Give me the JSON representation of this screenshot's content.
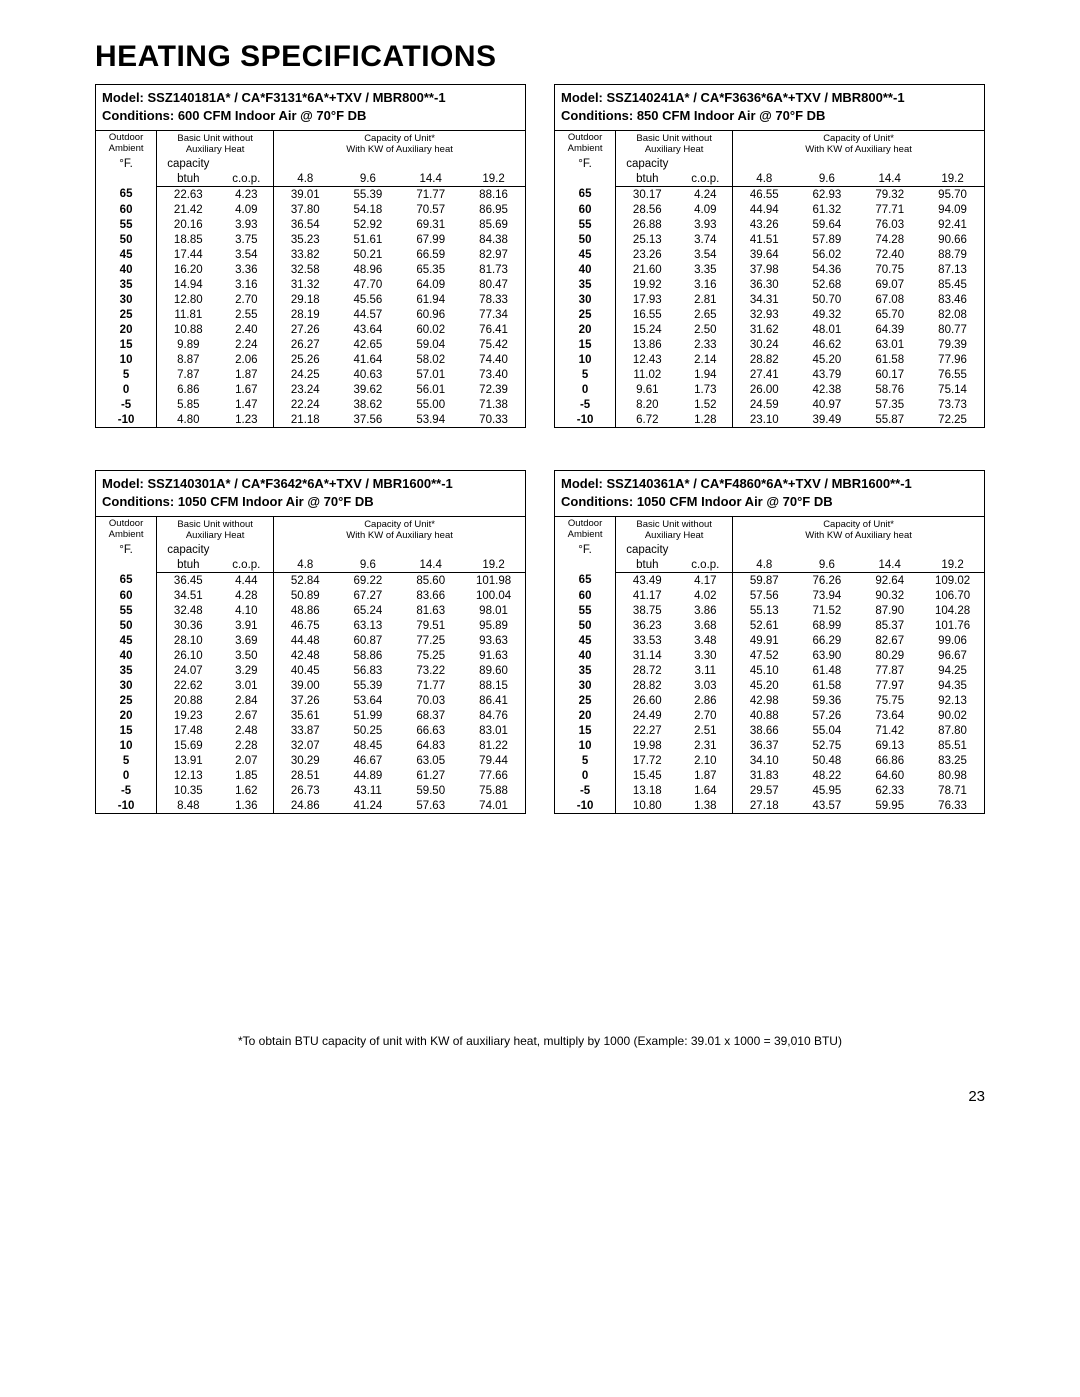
{
  "page_title": "HEATING SPECIFICATIONS",
  "header_labels": {
    "outdoor_line1": "Outdoor",
    "outdoor_line2": "Ambient",
    "outdoor_unit": "°F.",
    "basic_unit_line1": "Basic Unit without",
    "basic_unit_line2": "Auxiliary Heat",
    "capacity_line1": "Capacity of Unit*",
    "capacity_line2": "With KW of Auxiliary heat",
    "capacity_btuh_line1": "capacity",
    "capacity_btuh_line2": "btuh",
    "cop": "c.o.p."
  },
  "kw_columns": [
    "4.8",
    "9.6",
    "14.4",
    "19.2"
  ],
  "blocks": [
    {
      "model": "Model: SSZ140181A* / CA*F3131*6A*+TXV / MBR800**-1",
      "conditions": "Conditions: 600 CFM Indoor Air @ 70°F DB",
      "rows": [
        [
          "65",
          "22.63",
          "4.23",
          "39.01",
          "55.39",
          "71.77",
          "88.16"
        ],
        [
          "60",
          "21.42",
          "4.09",
          "37.80",
          "54.18",
          "70.57",
          "86.95"
        ],
        [
          "55",
          "20.16",
          "3.93",
          "36.54",
          "52.92",
          "69.31",
          "85.69"
        ],
        [
          "50",
          "18.85",
          "3.75",
          "35.23",
          "51.61",
          "67.99",
          "84.38"
        ],
        [
          "45",
          "17.44",
          "3.54",
          "33.82",
          "50.21",
          "66.59",
          "82.97"
        ],
        [
          "40",
          "16.20",
          "3.36",
          "32.58",
          "48.96",
          "65.35",
          "81.73"
        ],
        [
          "35",
          "14.94",
          "3.16",
          "31.32",
          "47.70",
          "64.09",
          "80.47"
        ],
        [
          "30",
          "12.80",
          "2.70",
          "29.18",
          "45.56",
          "61.94",
          "78.33"
        ],
        [
          "25",
          "11.81",
          "2.55",
          "28.19",
          "44.57",
          "60.96",
          "77.34"
        ],
        [
          "20",
          "10.88",
          "2.40",
          "27.26",
          "43.64",
          "60.02",
          "76.41"
        ],
        [
          "15",
          "9.89",
          "2.24",
          "26.27",
          "42.65",
          "59.04",
          "75.42"
        ],
        [
          "10",
          "8.87",
          "2.06",
          "25.26",
          "41.64",
          "58.02",
          "74.40"
        ],
        [
          "5",
          "7.87",
          "1.87",
          "24.25",
          "40.63",
          "57.01",
          "73.40"
        ],
        [
          "0",
          "6.86",
          "1.67",
          "23.24",
          "39.62",
          "56.01",
          "72.39"
        ],
        [
          "-5",
          "5.85",
          "1.47",
          "22.24",
          "38.62",
          "55.00",
          "71.38"
        ],
        [
          "-10",
          "4.80",
          "1.23",
          "21.18",
          "37.56",
          "53.94",
          "70.33"
        ]
      ]
    },
    {
      "model": "Model: SSZ140241A* / CA*F3636*6A*+TXV / MBR800**-1",
      "conditions": "Conditions: 850 CFM Indoor Air @ 70°F DB",
      "rows": [
        [
          "65",
          "30.17",
          "4.24",
          "46.55",
          "62.93",
          "79.32",
          "95.70"
        ],
        [
          "60",
          "28.56",
          "4.09",
          "44.94",
          "61.32",
          "77.71",
          "94.09"
        ],
        [
          "55",
          "26.88",
          "3.93",
          "43.26",
          "59.64",
          "76.03",
          "92.41"
        ],
        [
          "50",
          "25.13",
          "3.74",
          "41.51",
          "57.89",
          "74.28",
          "90.66"
        ],
        [
          "45",
          "23.26",
          "3.54",
          "39.64",
          "56.02",
          "72.40",
          "88.79"
        ],
        [
          "40",
          "21.60",
          "3.35",
          "37.98",
          "54.36",
          "70.75",
          "87.13"
        ],
        [
          "35",
          "19.92",
          "3.16",
          "36.30",
          "52.68",
          "69.07",
          "85.45"
        ],
        [
          "30",
          "17.93",
          "2.81",
          "34.31",
          "50.70",
          "67.08",
          "83.46"
        ],
        [
          "25",
          "16.55",
          "2.65",
          "32.93",
          "49.32",
          "65.70",
          "82.08"
        ],
        [
          "20",
          "15.24",
          "2.50",
          "31.62",
          "48.01",
          "64.39",
          "80.77"
        ],
        [
          "15",
          "13.86",
          "2.33",
          "30.24",
          "46.62",
          "63.01",
          "79.39"
        ],
        [
          "10",
          "12.43",
          "2.14",
          "28.82",
          "45.20",
          "61.58",
          "77.96"
        ],
        [
          "5",
          "11.02",
          "1.94",
          "27.41",
          "43.79",
          "60.17",
          "76.55"
        ],
        [
          "0",
          "9.61",
          "1.73",
          "26.00",
          "42.38",
          "58.76",
          "75.14"
        ],
        [
          "-5",
          "8.20",
          "1.52",
          "24.59",
          "40.97",
          "57.35",
          "73.73"
        ],
        [
          "-10",
          "6.72",
          "1.28",
          "23.10",
          "39.49",
          "55.87",
          "72.25"
        ]
      ]
    },
    {
      "model": "Model: SSZ140301A* / CA*F3642*6A*+TXV / MBR1600**-1",
      "conditions": "Conditions: 1050 CFM Indoor Air @ 70°F DB",
      "rows": [
        [
          "65",
          "36.45",
          "4.44",
          "52.84",
          "69.22",
          "85.60",
          "101.98"
        ],
        [
          "60",
          "34.51",
          "4.28",
          "50.89",
          "67.27",
          "83.66",
          "100.04"
        ],
        [
          "55",
          "32.48",
          "4.10",
          "48.86",
          "65.24",
          "81.63",
          "98.01"
        ],
        [
          "50",
          "30.36",
          "3.91",
          "46.75",
          "63.13",
          "79.51",
          "95.89"
        ],
        [
          "45",
          "28.10",
          "3.69",
          "44.48",
          "60.87",
          "77.25",
          "93.63"
        ],
        [
          "40",
          "26.10",
          "3.50",
          "42.48",
          "58.86",
          "75.25",
          "91.63"
        ],
        [
          "35",
          "24.07",
          "3.29",
          "40.45",
          "56.83",
          "73.22",
          "89.60"
        ],
        [
          "30",
          "22.62",
          "3.01",
          "39.00",
          "55.39",
          "71.77",
          "88.15"
        ],
        [
          "25",
          "20.88",
          "2.84",
          "37.26",
          "53.64",
          "70.03",
          "86.41"
        ],
        [
          "20",
          "19.23",
          "2.67",
          "35.61",
          "51.99",
          "68.37",
          "84.76"
        ],
        [
          "15",
          "17.48",
          "2.48",
          "33.87",
          "50.25",
          "66.63",
          "83.01"
        ],
        [
          "10",
          "15.69",
          "2.28",
          "32.07",
          "48.45",
          "64.83",
          "81.22"
        ],
        [
          "5",
          "13.91",
          "2.07",
          "30.29",
          "46.67",
          "63.05",
          "79.44"
        ],
        [
          "0",
          "12.13",
          "1.85",
          "28.51",
          "44.89",
          "61.27",
          "77.66"
        ],
        [
          "-5",
          "10.35",
          "1.62",
          "26.73",
          "43.11",
          "59.50",
          "75.88"
        ],
        [
          "-10",
          "8.48",
          "1.36",
          "24.86",
          "41.24",
          "57.63",
          "74.01"
        ]
      ]
    },
    {
      "model": "Model: SSZ140361A* / CA*F4860*6A*+TXV / MBR1600**-1",
      "conditions": "Conditions: 1050 CFM Indoor Air @ 70°F DB",
      "rows": [
        [
          "65",
          "43.49",
          "4.17",
          "59.87",
          "76.26",
          "92.64",
          "109.02"
        ],
        [
          "60",
          "41.17",
          "4.02",
          "57.56",
          "73.94",
          "90.32",
          "106.70"
        ],
        [
          "55",
          "38.75",
          "3.86",
          "55.13",
          "71.52",
          "87.90",
          "104.28"
        ],
        [
          "50",
          "36.23",
          "3.68",
          "52.61",
          "68.99",
          "85.37",
          "101.76"
        ],
        [
          "45",
          "33.53",
          "3.48",
          "49.91",
          "66.29",
          "82.67",
          "99.06"
        ],
        [
          "40",
          "31.14",
          "3.30",
          "47.52",
          "63.90",
          "80.29",
          "96.67"
        ],
        [
          "35",
          "28.72",
          "3.11",
          "45.10",
          "61.48",
          "77.87",
          "94.25"
        ],
        [
          "30",
          "28.82",
          "3.03",
          "45.20",
          "61.58",
          "77.97",
          "94.35"
        ],
        [
          "25",
          "26.60",
          "2.86",
          "42.98",
          "59.36",
          "75.75",
          "92.13"
        ],
        [
          "20",
          "24.49",
          "2.70",
          "40.88",
          "57.26",
          "73.64",
          "90.02"
        ],
        [
          "15",
          "22.27",
          "2.51",
          "38.66",
          "55.04",
          "71.42",
          "87.80"
        ],
        [
          "10",
          "19.98",
          "2.31",
          "36.37",
          "52.75",
          "69.13",
          "85.51"
        ],
        [
          "5",
          "17.72",
          "2.10",
          "34.10",
          "50.48",
          "66.86",
          "83.25"
        ],
        [
          "0",
          "15.45",
          "1.87",
          "31.83",
          "48.22",
          "64.60",
          "80.98"
        ],
        [
          "-5",
          "13.18",
          "1.64",
          "29.57",
          "45.95",
          "62.33",
          "78.71"
        ],
        [
          "-10",
          "10.80",
          "1.38",
          "27.18",
          "43.57",
          "59.95",
          "76.33"
        ]
      ]
    }
  ],
  "footnote": "*To obtain BTU capacity of unit with KW of auxiliary heat, multiply by 1000 (Example: 39.01 x 1000 = 39,010 BTU)",
  "page_number": "23"
}
